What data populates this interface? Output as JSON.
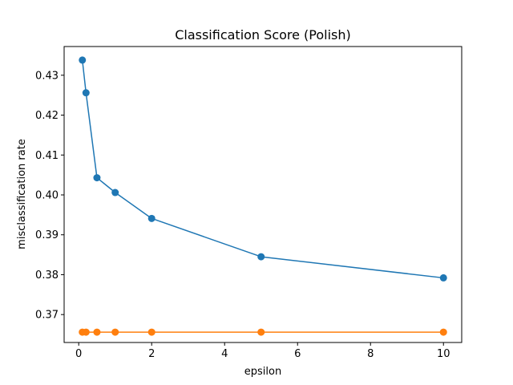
{
  "chart_data": {
    "type": "line",
    "title": "Classification Score (Polish)",
    "xlabel": "epsilon",
    "ylabel": "misclassification rate",
    "xlim": [
      -0.4,
      10.5
    ],
    "ylim": [
      0.363,
      0.4372
    ],
    "xticks": [
      0,
      2,
      4,
      6,
      8,
      10
    ],
    "yticks": [
      0.37,
      0.38,
      0.39,
      0.4,
      0.41,
      0.42,
      0.43
    ],
    "xtick_labels": [
      "0",
      "2",
      "4",
      "6",
      "8",
      "10"
    ],
    "ytick_labels": [
      "0.37",
      "0.38",
      "0.39",
      "0.40",
      "0.41",
      "0.42",
      "0.43"
    ],
    "grid": false,
    "legend": "none",
    "series": [
      {
        "color": "#1f77b4",
        "marker": "circle",
        "x": [
          0.1,
          0.2,
          0.5,
          1,
          2,
          5,
          10
        ],
        "y": [
          0.4338,
          0.4256,
          0.4043,
          0.4006,
          0.3941,
          0.3845,
          0.3792
        ]
      },
      {
        "color": "#ff7f0e",
        "marker": "circle",
        "x": [
          0.1,
          0.2,
          0.5,
          1,
          2,
          5,
          10
        ],
        "y": [
          0.3656,
          0.3656,
          0.3656,
          0.3656,
          0.3656,
          0.3656,
          0.3656
        ]
      }
    ]
  }
}
